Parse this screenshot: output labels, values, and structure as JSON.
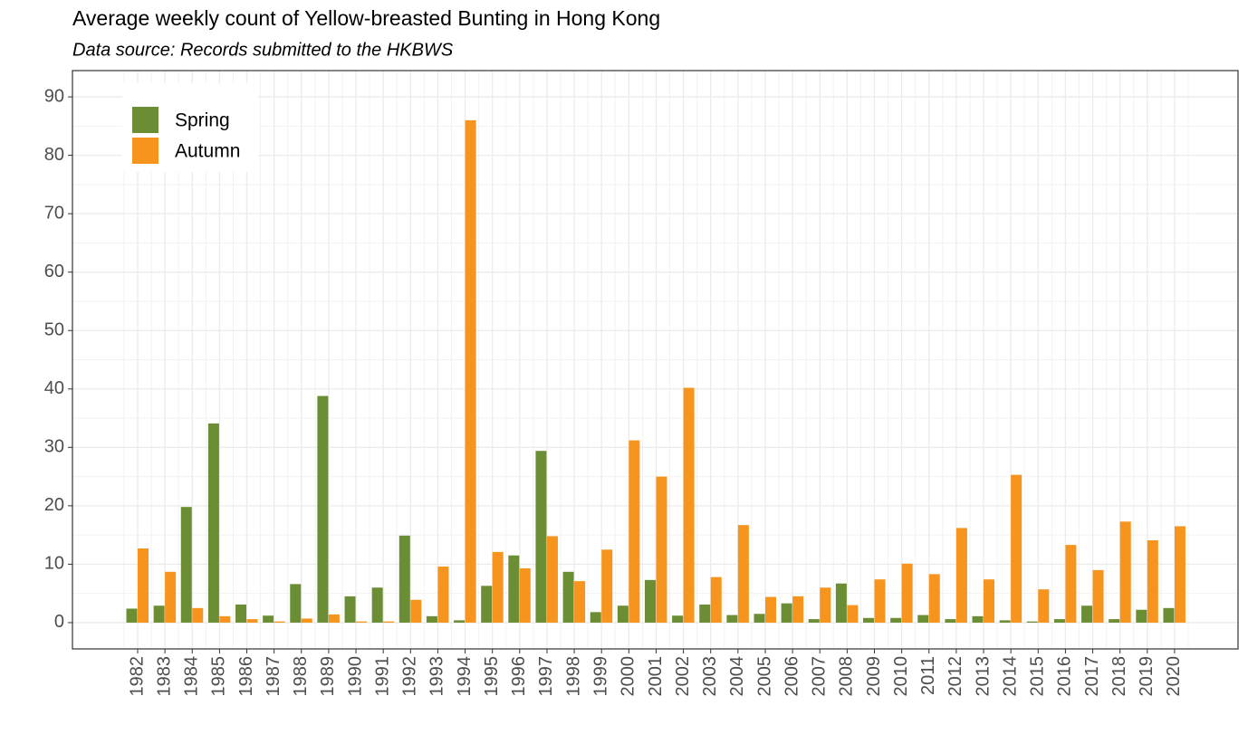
{
  "chart_data": {
    "type": "bar",
    "title": "Average weekly count of Yellow-breasted Bunting in Hong Kong",
    "subtitle": "Data source: Records submitted to the HKBWS",
    "categories": [
      "1982",
      "1983",
      "1984",
      "1985",
      "1986",
      "1987",
      "1988",
      "1989",
      "1990",
      "1991",
      "1992",
      "1993",
      "1994",
      "1995",
      "1996",
      "1997",
      "1998",
      "1999",
      "2000",
      "2001",
      "2002",
      "2003",
      "2004",
      "2005",
      "2006",
      "2007",
      "2008",
      "2009",
      "2010",
      "2011",
      "2012",
      "2013",
      "2014",
      "2015",
      "2016",
      "2017",
      "2018",
      "2019",
      "2020"
    ],
    "series": [
      {
        "name": "Spring",
        "color": "#6b8e34",
        "values": [
          2.4,
          2.9,
          19.8,
          34.1,
          3.1,
          1.2,
          6.6,
          38.8,
          4.5,
          6.0,
          14.9,
          1.1,
          0.4,
          6.3,
          11.5,
          29.4,
          8.7,
          1.8,
          2.9,
          7.3,
          1.2,
          3.1,
          1.3,
          1.5,
          3.3,
          0.6,
          6.7,
          0.8,
          0.8,
          1.3,
          0.6,
          1.1,
          0.4,
          0.2,
          0.6,
          2.9,
          0.6,
          2.2,
          2.5
        ]
      },
      {
        "name": "Autumn",
        "color": "#f7941d",
        "values": [
          12.7,
          8.7,
          2.5,
          1.1,
          0.6,
          0.2,
          0.7,
          1.4,
          0.2,
          0.2,
          3.9,
          9.6,
          86.0,
          12.1,
          9.3,
          14.8,
          7.1,
          12.5,
          31.2,
          25.0,
          40.2,
          7.8,
          16.7,
          4.4,
          4.5,
          6.0,
          3.0,
          7.4,
          10.1,
          8.3,
          16.2,
          7.4,
          25.3,
          5.7,
          13.3,
          9.0,
          17.3,
          14.1,
          16.5
        ]
      }
    ],
    "ylim": [
      -4.5,
      94.5
    ],
    "yticks": [
      0,
      10,
      20,
      30,
      40,
      50,
      60,
      70,
      80,
      90
    ],
    "grid": true,
    "legend": "top-left"
  }
}
